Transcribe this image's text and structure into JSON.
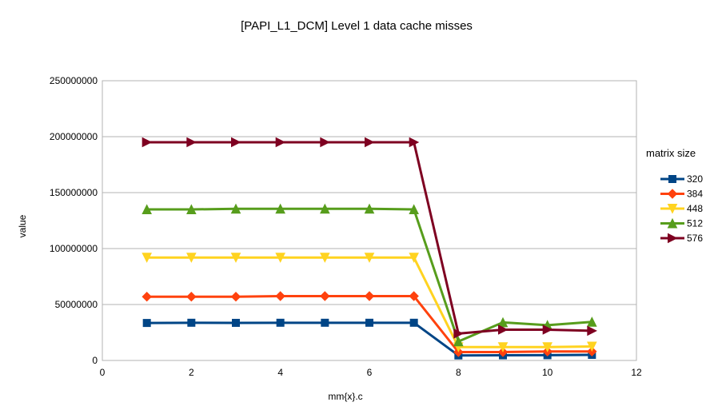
{
  "chart_data": {
    "type": "line",
    "title": "[PAPI_L1_DCM] Level 1 data cache misses",
    "xlabel": "mm{x}.c",
    "ylabel": "value",
    "xlim": [
      0,
      12
    ],
    "ylim": [
      0,
      250000000
    ],
    "xticks": [
      "0",
      "2",
      "4",
      "6",
      "8",
      "10",
      "12"
    ],
    "yticks": [
      "0",
      "50000000",
      "100000000",
      "150000000",
      "200000000",
      "250000000"
    ],
    "grid": "horizontal",
    "legend_title": "matrix size",
    "legend_position": "right",
    "x": [
      1,
      2,
      3,
      4,
      5,
      6,
      7,
      8,
      9,
      10,
      11
    ],
    "series": [
      {
        "name": "320",
        "color": "#004586",
        "marker": "square",
        "values": [
          33500000,
          33700000,
          33600000,
          33700000,
          33700000,
          33700000,
          33700000,
          4500000,
          4600000,
          4700000,
          5000000
        ]
      },
      {
        "name": "384",
        "color": "#ff420e",
        "marker": "diamond",
        "values": [
          57000000,
          57000000,
          57000000,
          57500000,
          57500000,
          57500000,
          57500000,
          7500000,
          7500000,
          8000000,
          8000000
        ]
      },
      {
        "name": "448",
        "color": "#ffd320",
        "marker": "triangle-down",
        "values": [
          92000000,
          92000000,
          92000000,
          92000000,
          92000000,
          92000000,
          92000000,
          12000000,
          12000000,
          12000000,
          12500000
        ]
      },
      {
        "name": "512",
        "color": "#579d1c",
        "marker": "triangle-up",
        "values": [
          135000000,
          135000000,
          135500000,
          135500000,
          135500000,
          135500000,
          135000000,
          17000000,
          34000000,
          31500000,
          34500000
        ]
      },
      {
        "name": "576",
        "color": "#7e0021",
        "marker": "triangle-right",
        "values": [
          195000000,
          195000000,
          195000000,
          195000000,
          195000000,
          195000000,
          195000000,
          24000000,
          27500000,
          27500000,
          26500000
        ]
      }
    ]
  }
}
